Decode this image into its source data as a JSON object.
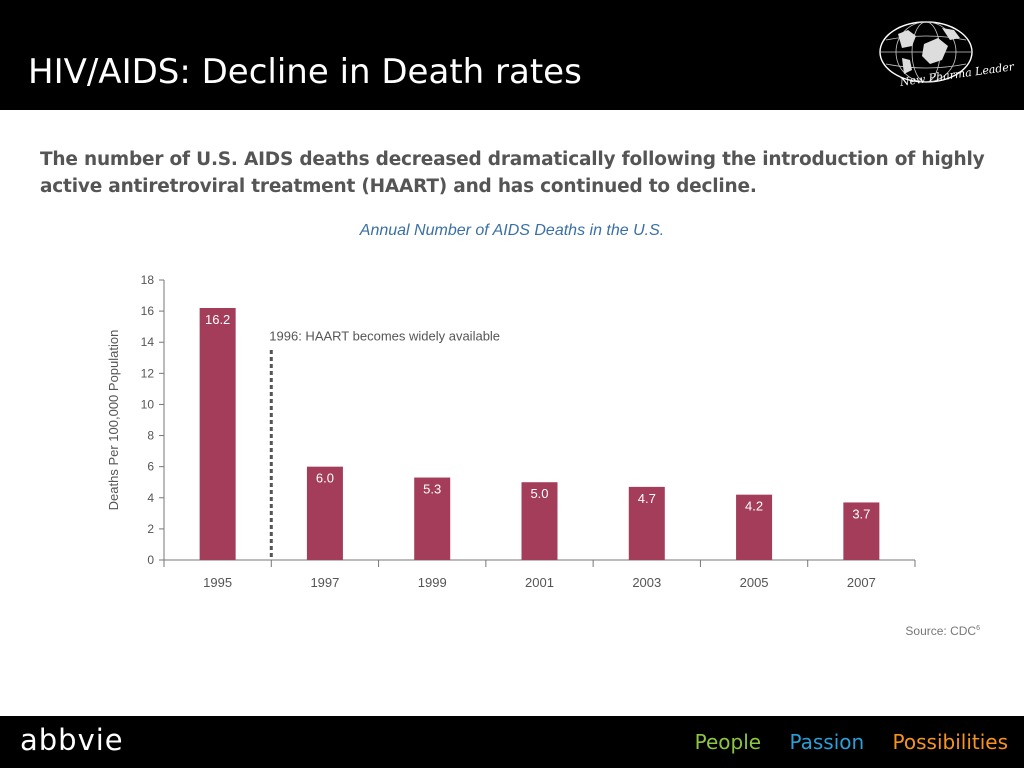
{
  "header": {
    "title": "HIV/AIDS: Decline in Death rates",
    "logo_caption": "New Pharma Leader"
  },
  "lead_text": "The number of U.S. AIDS deaths decreased dramatically following the introduction of highly active antiretroviral treatment (HAART) and has continued to decline.",
  "chart_data": {
    "type": "bar",
    "title": "Annual Number of AIDS Deaths in the U.S.",
    "ylabel": "Deaths Per 100,000 Population",
    "xlabel": "",
    "categories": [
      "1995",
      "1997",
      "1999",
      "2001",
      "2003",
      "2005",
      "2007"
    ],
    "values": [
      16.2,
      6.0,
      5.3,
      5.0,
      4.7,
      4.2,
      3.7
    ],
    "value_labels": [
      "16.2",
      "6.0",
      "5.3",
      "5.0",
      "4.7",
      "4.2",
      "3.7"
    ],
    "ylim": [
      0,
      18
    ],
    "yticks": [
      0,
      2,
      4,
      6,
      8,
      10,
      12,
      14,
      16,
      18
    ],
    "bar_color": "#a33d59",
    "grid": false,
    "annotation": {
      "text": "1996:  HAART becomes widely available",
      "x_between": [
        "1995",
        "1997"
      ]
    }
  },
  "source": {
    "label": "Source: CDC",
    "ref": "6"
  },
  "footer": {
    "brand": "abbvie",
    "tagline": [
      {
        "text": "People",
        "color": "#8dc63f"
      },
      {
        "text": "Passion",
        "color": "#2a9fd8"
      },
      {
        "text": "Possibilities",
        "color": "#f7941d"
      }
    ]
  }
}
